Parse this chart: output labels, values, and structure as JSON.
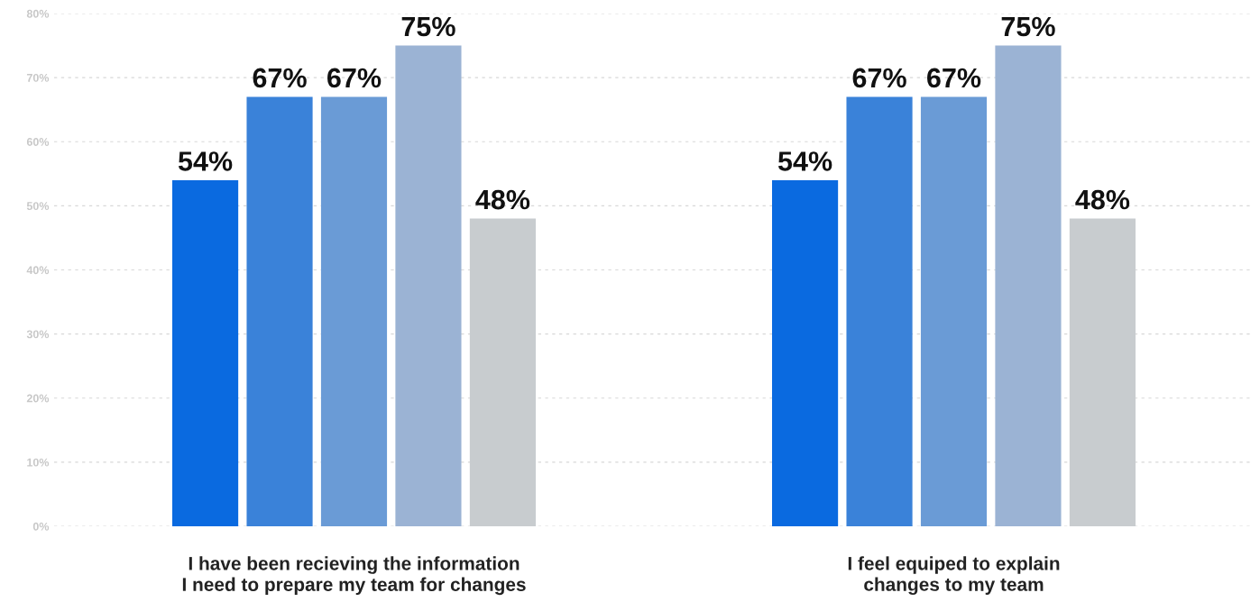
{
  "chart_data": {
    "type": "bar",
    "categories": [
      "I have been recieving the information\nI need to prepare my team for changes",
      "I feel equiped to explain\nchanges to my team"
    ],
    "series": [
      {
        "color": "#0a6ae0",
        "values": [
          54,
          54
        ]
      },
      {
        "color": "#3a82d9",
        "values": [
          67,
          67
        ]
      },
      {
        "color": "#6a9bd6",
        "values": [
          67,
          67
        ]
      },
      {
        "color": "#9bb3d4",
        "values": [
          75,
          75
        ]
      },
      {
        "color": "#c8cccf",
        "values": [
          48,
          48
        ]
      }
    ],
    "ylim": [
      0,
      80
    ],
    "yticks": [
      {
        "value": 0,
        "label": "0%"
      },
      {
        "value": 10,
        "label": "10%"
      },
      {
        "value": 20,
        "label": "20%"
      },
      {
        "value": 30,
        "label": "30%"
      },
      {
        "value": 40,
        "label": "40%"
      },
      {
        "value": 50,
        "label": "50%"
      },
      {
        "value": 60,
        "label": "60%"
      },
      {
        "value": 70,
        "label": "70%"
      },
      {
        "value": 80,
        "label": "80%"
      }
    ],
    "value_labels": [
      [
        "54%",
        "54%"
      ],
      [
        "67%",
        "67%"
      ],
      [
        "67%",
        "67%"
      ],
      [
        "75%",
        "75%"
      ],
      [
        "48%",
        "48%"
      ]
    ],
    "grid": "y"
  }
}
